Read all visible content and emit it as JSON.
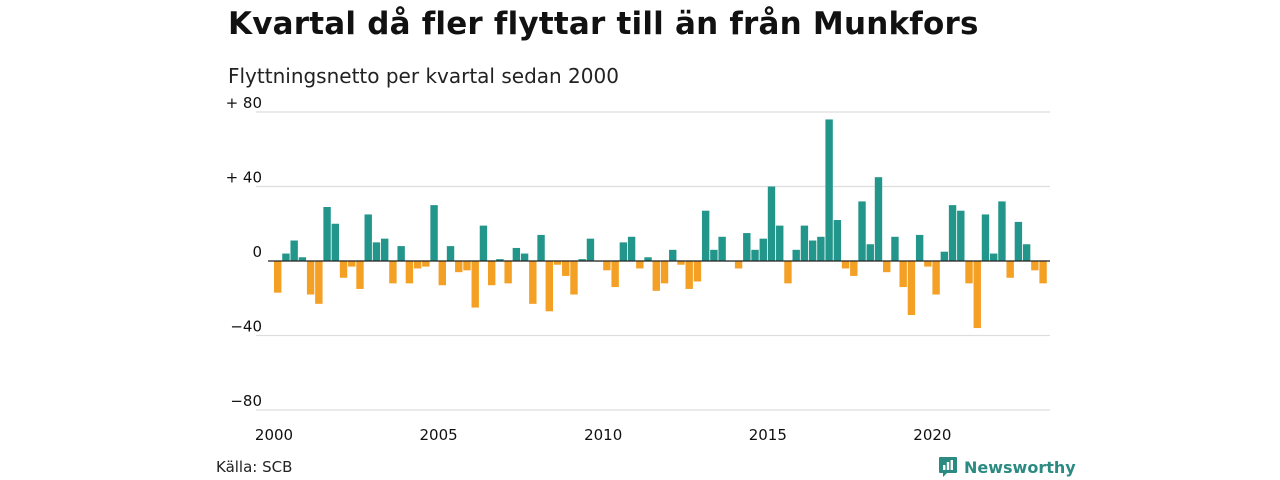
{
  "header": {
    "title": "Kvartal då fler flyttar till än från Munkfors",
    "subtitle": "Flyttningsnetto per kvartal sedan 2000"
  },
  "footer": {
    "source": "Källa: SCB",
    "brand": "Newsworthy"
  },
  "colors": {
    "positive": "#23968b",
    "negative": "#f3a024",
    "grid": "#dddddd",
    "zero_line": "#222222",
    "brand": "#2b8a81"
  },
  "chart_data": {
    "type": "bar",
    "title": "Kvartal då fler flyttar till än från Munkfors",
    "subtitle": "Flyttningsnetto per kvartal sedan 2000",
    "xlabel": "",
    "ylabel": "",
    "x_start": 2000,
    "quarters_per_year": 4,
    "x_ticks": [
      2000,
      2005,
      2010,
      2015,
      2020
    ],
    "ylim": [
      -80,
      80
    ],
    "y_ticks": [
      {
        "value": 80,
        "label": "+ 80"
      },
      {
        "value": 40,
        "label": "+ 40"
      },
      {
        "value": 0,
        "label": "0"
      },
      {
        "value": -40,
        "label": "−40"
      },
      {
        "value": -80,
        "label": "−80"
      }
    ],
    "grid": true,
    "values": [
      -17,
      4,
      11,
      2,
      -18,
      -23,
      29,
      20,
      -9,
      -3,
      -15,
      25,
      10,
      12,
      -12,
      8,
      -12,
      -4,
      -3,
      30,
      -13,
      8,
      -6,
      -5,
      -25,
      19,
      -13,
      1,
      -12,
      7,
      4,
      -23,
      14,
      -27,
      -2,
      -8,
      -18,
      1,
      12,
      0,
      -5,
      -14,
      10,
      13,
      -4,
      2,
      -16,
      -12,
      6,
      -2,
      -15,
      -11,
      27,
      6,
      13,
      0,
      -4,
      15,
      6,
      12,
      40,
      19,
      -12,
      6,
      19,
      11,
      13,
      76,
      22,
      -4,
      -8,
      32,
      9,
      45,
      -6,
      13,
      -14,
      -29,
      14,
      -3,
      -18,
      5,
      30,
      27,
      -12,
      -36,
      25,
      4,
      32,
      -9,
      21,
      9,
      -5,
      -12
    ]
  }
}
